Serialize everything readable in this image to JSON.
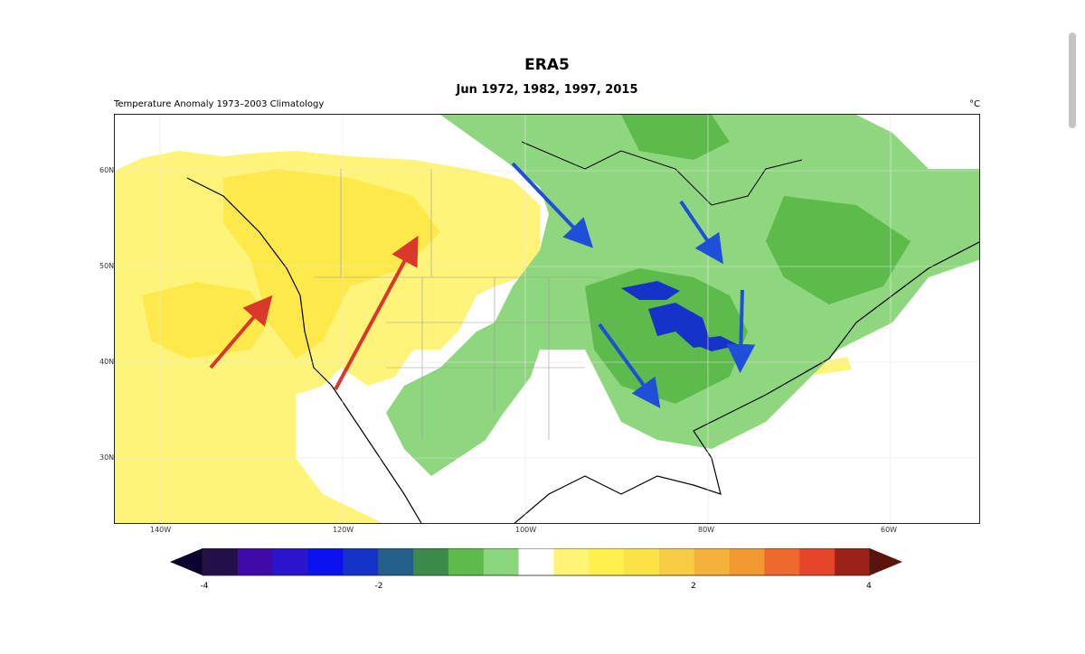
{
  "header": {
    "title": "ERA5",
    "subtitle": "Jun 1972, 1982, 1997, 2015",
    "left_label": "Temperature Anomaly  1973–2003 Climatology",
    "unit": "°C"
  },
  "map": {
    "region": "North America",
    "lat_labels": [
      "60N",
      "50N",
      "40N",
      "30N"
    ],
    "lon_labels": [
      "140W",
      "120W",
      "100W",
      "80W",
      "60W"
    ],
    "arrow_colors": {
      "warm": "#d9382b",
      "cool": "#1f4fd8"
    }
  },
  "colorbar": {
    "tick_labels": [
      "-4",
      "-2",
      "2",
      "4"
    ],
    "bins": [
      "#22104a",
      "#3f0aa8",
      "#2a14cc",
      "#0a12f0",
      "#1633c9",
      "#245e8a",
      "#3c8b4b",
      "#5dbb4b",
      "#8ad67c",
      "#ffffff",
      "#fff374",
      "#fff04d",
      "#fbe347",
      "#f8cc43",
      "#f5b33c",
      "#f29932",
      "#ee6a2c",
      "#e5452a",
      "#9b2216"
    ],
    "end_colors": {
      "min": "#0b0430",
      "max": "#5a140c"
    }
  }
}
